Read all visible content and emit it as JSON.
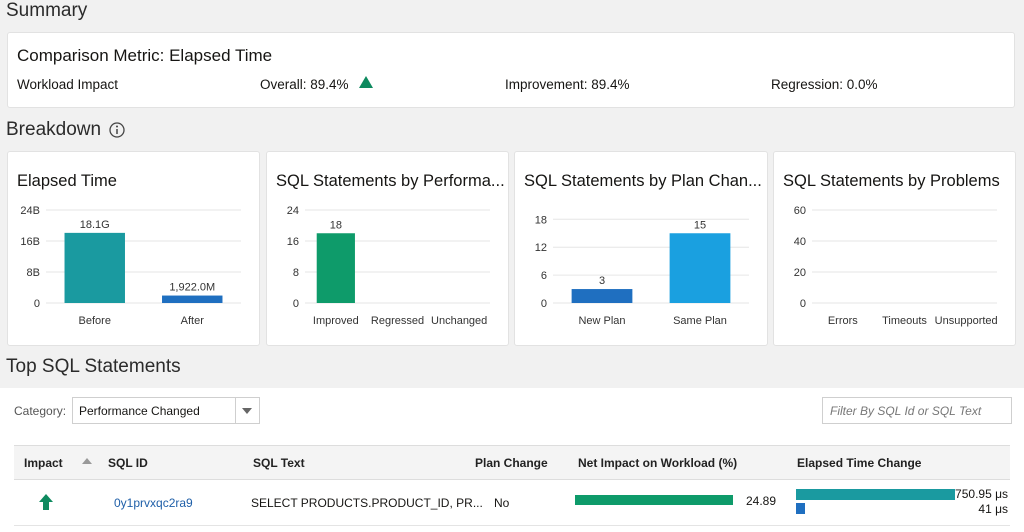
{
  "summary": {
    "heading": "Summary",
    "metric": "Comparison Metric: Elapsed Time",
    "label": "Workload Impact",
    "overall": "Overall: 89.4%",
    "improvement": "Improvement: 89.4%",
    "regression": "Regression: 0.0%"
  },
  "breakdown": {
    "heading": "Breakdown",
    "charts": [
      {
        "type": "bar",
        "title": "Elapsed Time",
        "categories": [
          "Before",
          "After"
        ],
        "values": [
          18100000000,
          1922000000
        ],
        "value_labels": [
          "18.1G",
          "1,922.0M"
        ],
        "colors": [
          "#1a9aa0",
          "#1f6fc0"
        ],
        "ylim": [
          0,
          24000000000
        ],
        "yticks": [
          {
            "value": 0,
            "label": "0"
          },
          {
            "value": 8000000000,
            "label": "8B"
          },
          {
            "value": 16000000000,
            "label": "16B"
          },
          {
            "value": 24000000000,
            "label": "24B"
          }
        ]
      },
      {
        "type": "bar",
        "title": "SQL Statements by Performa...",
        "categories": [
          "Improved",
          "Regressed",
          "Unchanged"
        ],
        "values": [
          18,
          0,
          0
        ],
        "colors": [
          "#0e9b6a",
          "#c74634",
          "#8a8a8a"
        ],
        "ylim": [
          0,
          24
        ],
        "yticks": [
          0,
          8,
          16,
          24
        ]
      },
      {
        "type": "bar",
        "title": "SQL Statements by Plan Chan...",
        "categories": [
          "New Plan",
          "Same Plan"
        ],
        "values": [
          3,
          15
        ],
        "colors": [
          "#1f6fc0",
          "#1aa0e0"
        ],
        "ylim": [
          0,
          20
        ],
        "yticks": [
          0,
          6,
          12,
          18
        ]
      },
      {
        "type": "bar",
        "title": "SQL Statements by Problems",
        "categories": [
          "Errors",
          "Timeouts",
          "Unsupported"
        ],
        "values": [
          0,
          0,
          0
        ],
        "colors": [
          "#c74634",
          "#e08a1a",
          "#8a8a8a"
        ],
        "ylim": [
          0,
          60
        ],
        "yticks": [
          0,
          20,
          40,
          60
        ]
      }
    ]
  },
  "top_sql": {
    "heading": "Top SQL Statements",
    "category_label": "Category:",
    "category_value": "Performance Changed",
    "filter_placeholder": "Filter By SQL Id or SQL Text",
    "table": {
      "columns": [
        "Impact",
        "SQL ID",
        "SQL Text",
        "Plan Change",
        "Net Impact on Workload (%)",
        "Elapsed Time Change"
      ],
      "rows": [
        {
          "sql_id": "0y1prvxqc2ra9",
          "sql_text": "SELECT PRODUCTS.PRODUCT_ID, PR...",
          "plan_change": "No",
          "net_impact": 24.89,
          "elapsed": [
            750.95,
            41
          ],
          "elapsed_labels": [
            "750.95 μs",
            "41 μs"
          ]
        }
      ]
    }
  }
}
